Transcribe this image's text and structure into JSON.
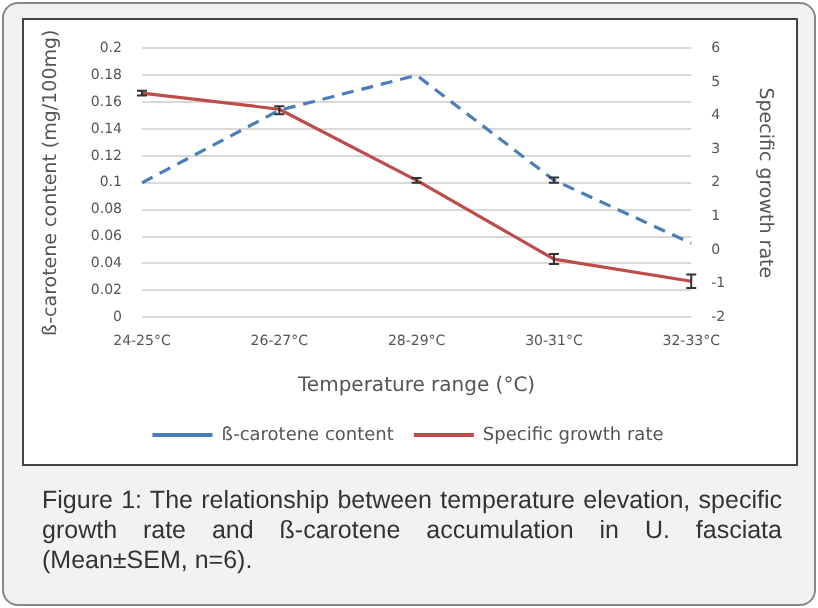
{
  "chart_data": {
    "type": "line",
    "categories": [
      "24-25°C",
      "26-27°C",
      "28-29°C",
      "30-31°C",
      "32-33°C"
    ],
    "xlabel": "Temperature range (°C)",
    "ylabel": "ß-carotene content (mg/100mg)",
    "y2label": "Specific growth rate",
    "series": [
      {
        "name": "ß-carotene content",
        "color": "#4a7ebb",
        "line_style": "dashed",
        "values": [
          0.1,
          0.154,
          0.18,
          0.102,
          0.055
        ],
        "errors": [
          null,
          0.003,
          null,
          0.002,
          null
        ]
      },
      {
        "name": "Specific growth rate",
        "color": "#be4b48",
        "line_style": "solid",
        "axis": "y2",
        "values": [
          4.67,
          4.19,
          2.07,
          -0.27,
          -0.93
        ],
        "errors": [
          0.07,
          null,
          0.07,
          0.15,
          0.2
        ]
      }
    ],
    "ylim": [
      0,
      0.2
    ],
    "yticks": [
      0,
      0.02,
      0.04,
      0.06,
      0.08,
      0.1,
      0.12,
      0.14,
      0.16,
      0.18,
      0.2
    ],
    "y2lim": [
      -2,
      6
    ],
    "y2ticks": [
      -2,
      -1,
      0,
      1,
      2,
      3,
      4,
      5,
      6
    ],
    "grid": "y",
    "legend": "bottom",
    "marker": "none",
    "annotations": [
      "Figure 1:  The relationship between temperature elevation, specific growth rate and ß-carotene accumulation in U. fasciata (Mean±SEM, n=6)."
    ]
  }
}
